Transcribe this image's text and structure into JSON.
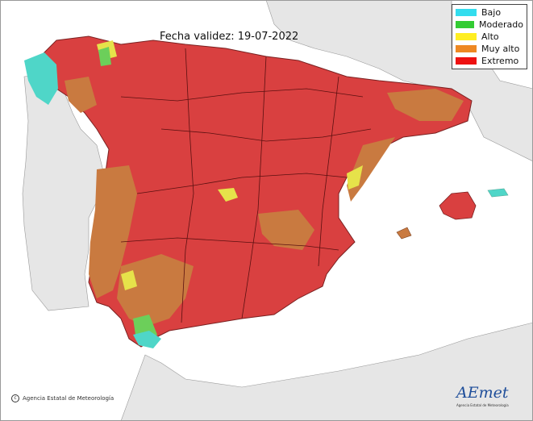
{
  "title": "Fecha validez: 19-07-2022",
  "legend": [
    {
      "label": "Bajo",
      "color": "#33ddee"
    },
    {
      "label": "Moderado",
      "color": "#33cc33"
    },
    {
      "label": "Alto",
      "color": "#ffee22"
    },
    {
      "label": "Muy alto",
      "color": "#ee8822"
    },
    {
      "label": "Extremo",
      "color": "#ee1111"
    }
  ],
  "credit": "Agencia Estatal de Meteorología",
  "logo": {
    "text": "AEmet",
    "subtitle": "Agencia Estatal de Meteorología"
  },
  "colors": {
    "land_neutral": "#e6e6e6",
    "sea": "#ffffff",
    "extremo_map": "#d94040",
    "muy_alto_map": "#c97a40",
    "alto_map": "#e6e24a",
    "moderado_map": "#6ccf5a",
    "bajo_map": "#4fd6c8"
  }
}
